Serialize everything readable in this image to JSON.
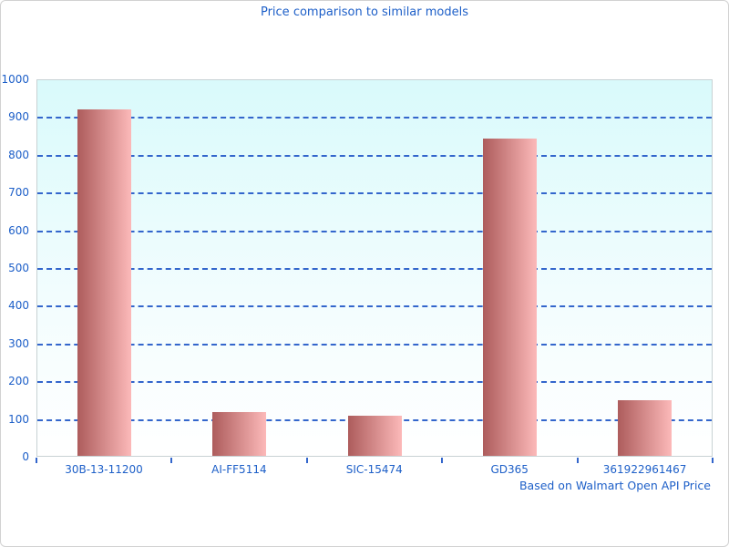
{
  "chart_data": {
    "type": "bar",
    "title": "Price comparison to similar models",
    "footer": "Based on Walmart Open API Price",
    "categories": [
      "30B-13-11200",
      "AI-FF5114",
      "SIC-15474",
      "GD365",
      "361922961467"
    ],
    "values": [
      917,
      117,
      107,
      841,
      147
    ],
    "xlabel": "",
    "ylabel": "",
    "ylim": [
      0,
      1000
    ],
    "ytick_step": 100,
    "grid": "horizontal-dashed",
    "legend": "none",
    "colors": {
      "text_blue": "#1d5fc8",
      "gridline_blue": "#3366cc",
      "bar_gradient_left": "#ad5c5c",
      "bar_gradient_right": "#fcb9b9",
      "plot_bg_top": "#d9fafb",
      "plot_bg_bottom": "#ffffff",
      "plot_border": "#c8d2d4",
      "frame_border": "#d2d2d2"
    }
  }
}
